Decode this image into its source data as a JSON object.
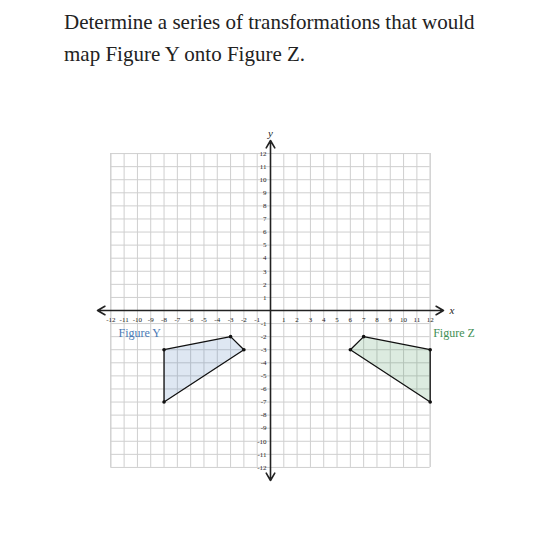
{
  "chart_data": {
    "type": "polygon",
    "title": "Determine a series of transformations that would map Figure Y onto Figure Z.",
    "x_label": "x",
    "y_label": "y",
    "xlim": [
      -13,
      13
    ],
    "ylim": [
      -13,
      13
    ],
    "xticks": [
      -12,
      -11,
      -10,
      -9,
      -8,
      -7,
      -6,
      -5,
      -4,
      -3,
      -2,
      -1,
      1,
      2,
      3,
      4,
      5,
      6,
      7,
      8,
      9,
      10,
      11,
      12
    ],
    "yticks": [
      -12,
      -11,
      -10,
      -9,
      -8,
      -7,
      -6,
      -5,
      -4,
      -3,
      -2,
      -1,
      1,
      2,
      3,
      4,
      5,
      6,
      7,
      8,
      9,
      10,
      11,
      12
    ],
    "grid": true,
    "series": [
      {
        "name": "Figure Y",
        "color": "#4a7ab5",
        "x": [
          -8,
          -3,
          -2,
          -8
        ],
        "y": [
          -3,
          -2,
          -3,
          -7
        ]
      },
      {
        "name": "Figure Z",
        "color": "#3f8f55",
        "x": [
          12,
          7,
          6,
          12
        ],
        "y": [
          -3,
          -2,
          -3,
          -7
        ]
      }
    ]
  }
}
